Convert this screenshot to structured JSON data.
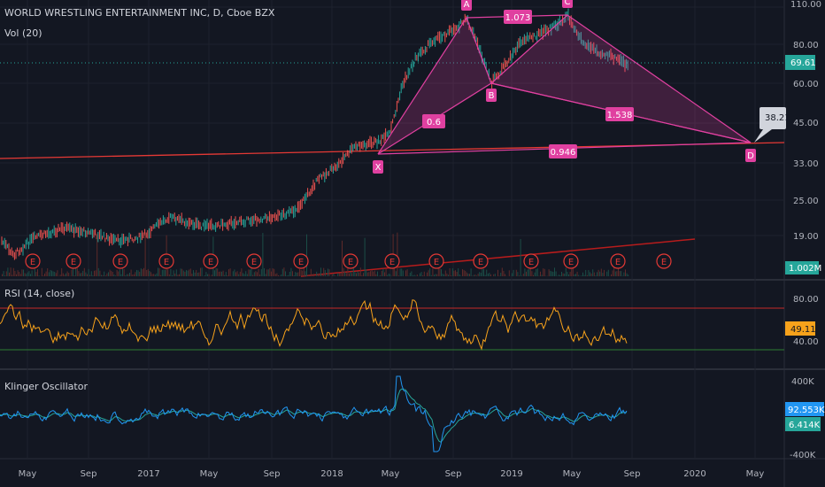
{
  "legend": {
    "title": "WORLD WRESTLING ENTERTAINMENT INC, D, Cboe BZX",
    "volume": "Vol (20)",
    "rsi": "RSI (14, close)",
    "klinger": "Klinger Oscillator"
  },
  "price_axis": {
    "ticks": [
      "110.00",
      "80.00",
      "60.00",
      "45.00",
      "33.00",
      "25.00",
      "19.00"
    ],
    "last_price": "69.61",
    "last_price_color": "#26a69a",
    "volume_label": "1.002M",
    "target_price": "38.21"
  },
  "rsi_axis": {
    "ticks": [
      "80.00",
      "40.00"
    ],
    "current": "49.11",
    "current_color": "#f7a21b"
  },
  "klinger_axis": {
    "ticks": [
      "400K",
      "-400K"
    ],
    "value_blue": "92.553K",
    "value_green": "6.414K"
  },
  "time_axis": [
    "May",
    "Sep",
    "2017",
    "May",
    "Sep",
    "2018",
    "May",
    "Sep",
    "2019",
    "May",
    "Sep",
    "2020",
    "May"
  ],
  "pattern": {
    "points": [
      "X",
      "A",
      "B",
      "C",
      "D"
    ],
    "ratios": [
      "0.6",
      "1.073",
      "1.538",
      "0.946"
    ],
    "color": "#e040a0"
  },
  "earnings_marker": "E",
  "colors": {
    "background": "#131722",
    "up": "#26a69a",
    "down": "#ef5350",
    "rsi_line": "#f7a21b",
    "klinger_blue": "#2196f3",
    "klinger_green": "#26a69a",
    "trend_red": "#e53935"
  }
}
